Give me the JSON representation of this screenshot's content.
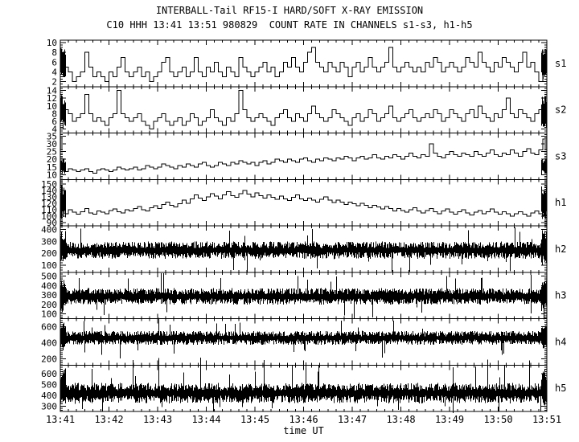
{
  "header": {
    "title": "INTERBALL-Tail RF15-I HARD/SOFT X-RAY EMISSION",
    "subtitle": "C10 HHH 13:41 13:51 980829  COUNT RATE IN CHANNELS s1-s3, h1-h5"
  },
  "colors": {
    "foreground": "#000000",
    "background": "#ffffff"
  },
  "chart_data": {
    "type": "line",
    "title": "INTERBALL-Tail RF15-I HARD/SOFT X-RAY EMISSION",
    "subtitle": "C10 HHH 13:41 13:51 980829  COUNT RATE IN CHANNELS s1-s3, h1-h5",
    "xlabel": "time UT",
    "x_axis": {
      "labels": [
        "13:41",
        "13:42",
        "13:43",
        "13:44",
        "13:45",
        "13:46",
        "13:47",
        "13:48",
        "13:49",
        "13:50",
        "13:51"
      ],
      "title": "time UT",
      "minors_per_major": 6
    },
    "legend_position": "right",
    "grid": false,
    "panels": [
      {
        "id": "s1",
        "label": "s1",
        "kind": "step",
        "ylim": [
          1,
          10.5
        ],
        "yticks": [
          2,
          4,
          6,
          8,
          10
        ],
        "yminor": 0.5,
        "burst": [
          2,
          9
        ],
        "values": [
          3,
          5,
          4,
          2,
          3,
          4,
          8,
          5,
          3,
          4,
          3,
          2,
          4,
          3,
          5,
          7,
          4,
          3,
          4,
          5,
          3,
          4,
          2,
          3,
          4,
          6,
          7,
          4,
          3,
          4,
          5,
          3,
          4,
          7,
          4,
          3,
          5,
          4,
          6,
          4,
          3,
          5,
          4,
          3,
          7,
          5,
          4,
          3,
          4,
          5,
          6,
          4,
          5,
          3,
          4,
          6,
          5,
          7,
          5,
          4,
          6,
          8,
          9,
          6,
          5,
          4,
          6,
          5,
          4,
          6,
          5,
          3,
          5,
          6,
          4,
          5,
          7,
          5,
          4,
          5,
          6,
          9,
          5,
          4,
          5,
          6,
          5,
          4,
          5,
          4,
          6,
          5,
          7,
          6,
          4,
          5,
          6,
          5,
          4,
          5,
          7,
          6,
          5,
          8,
          6,
          5,
          4,
          6,
          5,
          7,
          6,
          5,
          4,
          6,
          8,
          5,
          6,
          4,
          2,
          6
        ]
      },
      {
        "id": "s2",
        "label": "s2",
        "kind": "step",
        "ylim": [
          3,
          15
        ],
        "yticks": [
          4,
          6,
          8,
          10,
          12,
          14
        ],
        "yminor": 0.5,
        "burst": [
          4,
          13
        ],
        "values": [
          7,
          9,
          8,
          6,
          7,
          8,
          13,
          8,
          6,
          7,
          6,
          5,
          7,
          8,
          14,
          8,
          7,
          6,
          7,
          8,
          6,
          5,
          4,
          6,
          7,
          8,
          6,
          5,
          6,
          7,
          5,
          6,
          8,
          7,
          5,
          6,
          7,
          9,
          7,
          6,
          5,
          7,
          6,
          8,
          14,
          9,
          7,
          6,
          7,
          8,
          7,
          6,
          5,
          7,
          8,
          9,
          7,
          6,
          8,
          7,
          6,
          8,
          10,
          8,
          7,
          6,
          7,
          9,
          8,
          7,
          6,
          5,
          7,
          8,
          6,
          7,
          9,
          8,
          6,
          7,
          8,
          10,
          7,
          6,
          7,
          8,
          9,
          7,
          6,
          7,
          8,
          7,
          9,
          8,
          6,
          7,
          9,
          8,
          7,
          6,
          8,
          9,
          7,
          10,
          8,
          7,
          6,
          8,
          7,
          9,
          12,
          8,
          7,
          9,
          8,
          7,
          6,
          8,
          9,
          7
        ]
      },
      {
        "id": "s3",
        "label": "s3",
        "kind": "step",
        "ylim": [
          7,
          37
        ],
        "yticks": [
          10,
          15,
          20,
          25,
          30,
          35
        ],
        "yminor": 1,
        "burst": [
          10,
          21
        ],
        "values": [
          13,
          12,
          14,
          13,
          12,
          13,
          14,
          12,
          11,
          13,
          14,
          13,
          12,
          13,
          15,
          14,
          13,
          14,
          15,
          13,
          14,
          16,
          15,
          14,
          15,
          17,
          16,
          15,
          14,
          16,
          15,
          17,
          16,
          15,
          17,
          18,
          16,
          15,
          16,
          18,
          17,
          16,
          18,
          17,
          19,
          18,
          17,
          18,
          16,
          18,
          19,
          17,
          18,
          20,
          19,
          18,
          20,
          19,
          18,
          20,
          21,
          19,
          18,
          20,
          19,
          21,
          20,
          19,
          21,
          20,
          22,
          21,
          19,
          21,
          22,
          20,
          21,
          23,
          21,
          20,
          22,
          21,
          23,
          22,
          20,
          22,
          24,
          22,
          21,
          23,
          22,
          30,
          24,
          22,
          21,
          23,
          25,
          23,
          22,
          24,
          23,
          22,
          25,
          23,
          22,
          24,
          26,
          23,
          22,
          24,
          23,
          26,
          24,
          22,
          25,
          27,
          24,
          23,
          26,
          33
        ]
      },
      {
        "id": "h1",
        "label": "h1",
        "kind": "step",
        "ylim": [
          85,
          157
        ],
        "yticks": [
          90,
          100,
          110,
          120,
          130,
          140,
          150
        ],
        "yminor": 2,
        "burst": [
          95,
          150
        ],
        "values": [
          108,
          104,
          110,
          106,
          103,
          107,
          112,
          105,
          103,
          108,
          106,
          104,
          109,
          111,
          107,
          105,
          110,
          108,
          112,
          115,
          110,
          108,
          113,
          116,
          112,
          118,
          122,
          117,
          114,
          119,
          125,
          120,
          127,
          133,
          128,
          124,
          130,
          135,
          131,
          127,
          133,
          138,
          132,
          129,
          135,
          140,
          134,
          130,
          136,
          132,
          128,
          133,
          129,
          126,
          131,
          127,
          124,
          129,
          133,
          127,
          124,
          128,
          125,
          122,
          126,
          130,
          125,
          121,
          125,
          122,
          118,
          122,
          119,
          116,
          120,
          117,
          113,
          117,
          114,
          111,
          115,
          112,
          108,
          112,
          109,
          106,
          110,
          113,
          108,
          105,
          109,
          112,
          107,
          104,
          108,
          111,
          106,
          103,
          107,
          110,
          105,
          102,
          106,
          109,
          104,
          107,
          111,
          106,
          103,
          107,
          104,
          100,
          104,
          107,
          103,
          100,
          105,
          108,
          104,
          101
        ]
      },
      {
        "id": "h2",
        "label": "h2",
        "kind": "noise",
        "ylim": [
          40,
          430
        ],
        "yticks": [
          100,
          200,
          300,
          400
        ],
        "yminor": 20,
        "burst": [
          90,
          400
        ],
        "mean": 225,
        "half": 50,
        "spike": [
          90,
          380
        ],
        "seed": 7
      },
      {
        "id": "h3",
        "label": "h3",
        "kind": "noise",
        "ylim": [
          50,
          540
        ],
        "yticks": [
          100,
          200,
          300,
          400,
          500
        ],
        "yminor": 20,
        "burst": [
          110,
          500
        ],
        "mean": 285,
        "half": 60,
        "spike": [
          110,
          500
        ],
        "seed": 11
      },
      {
        "id": "h4",
        "label": "h4",
        "kind": "noise",
        "ylim": [
          120,
          700
        ],
        "yticks": [
          200,
          400,
          600
        ],
        "yminor": 25,
        "burst": [
          280,
          650
        ],
        "mean": 460,
        "half": 60,
        "spike": [
          280,
          650
        ],
        "seed": 13
      },
      {
        "id": "h5",
        "label": "h5",
        "kind": "noise",
        "ylim": [
          250,
          680
        ],
        "yticks": [
          300,
          400,
          500,
          600
        ],
        "yminor": 20,
        "burst": [
          290,
          650
        ],
        "mean": 420,
        "half": 65,
        "spike": [
          290,
          650
        ],
        "seed": 17
      }
    ]
  }
}
